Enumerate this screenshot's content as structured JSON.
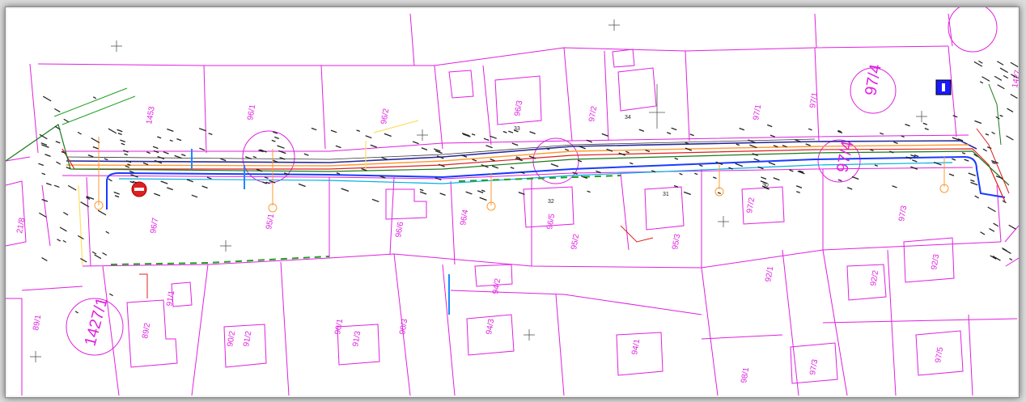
{
  "map": {
    "colors": {
      "parcel": "#e020e0",
      "water": "#1a3cff",
      "gas": "#ffb000",
      "telecom": "#1a7a1a",
      "power": "#e02020",
      "cable": "#00b0e0",
      "fence": "#20a020",
      "misc": "#ffe060"
    },
    "parcel_labels": [
      "1453",
      "97/1",
      "97/1",
      "97/2",
      "97/3",
      "97/4",
      "97/4",
      "96/1",
      "96/2",
      "96/3",
      "96/4",
      "96/5",
      "96/6",
      "96/7",
      "95/1",
      "95/2",
      "95/3",
      "94/1",
      "94/2",
      "94/3",
      "92/1",
      "92/2",
      "92/3",
      "91/1",
      "91/2",
      "91/3",
      "90/1",
      "90/2",
      "90/3",
      "89/1",
      "89/2",
      "97/3",
      "97/5",
      "98/1",
      "1427",
      "1427/1",
      "21/8",
      "97/2"
    ],
    "circled_labels": [
      "97/4",
      "97/4",
      "1427/1"
    ],
    "small_numbers": [
      "33",
      "32",
      "34",
      "31",
      "30"
    ],
    "icons": [
      "no-entry-sign-icon",
      "blue-marker-icon",
      "survey-cross-icon"
    ]
  }
}
